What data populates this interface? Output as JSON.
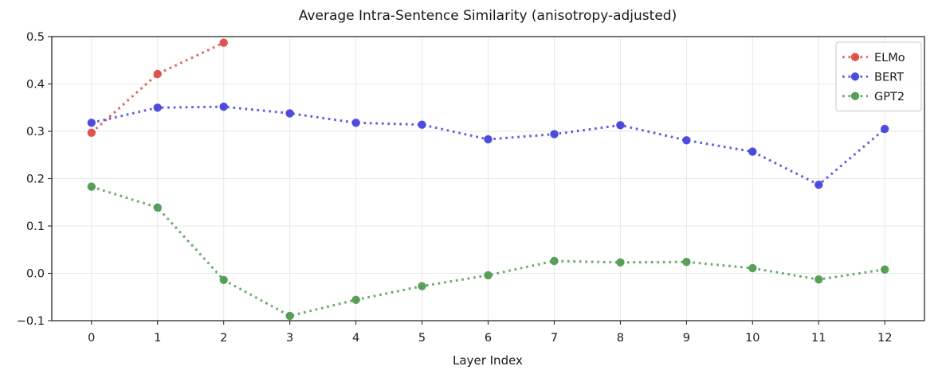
{
  "chart_data": {
    "type": "line",
    "title": "Average Intra-Sentence Similarity (anisotropy-adjusted)",
    "xlabel": "Layer Index",
    "ylabel": "",
    "line_style": "dotted",
    "marker": "circle",
    "grid": true,
    "legend_position": "upper right",
    "xlim": [
      -0.6,
      12.6
    ],
    "ylim": [
      -0.1,
      0.5
    ],
    "xticks": [
      0,
      1,
      2,
      3,
      4,
      5,
      6,
      7,
      8,
      9,
      10,
      11,
      12
    ],
    "yticks": [
      -0.1,
      0.0,
      0.1,
      0.2,
      0.3,
      0.4,
      0.5
    ],
    "series": [
      {
        "name": "ELMo",
        "color": "#dd4b42",
        "x": [
          0,
          1,
          2
        ],
        "values": [
          0.297,
          0.421,
          0.487
        ]
      },
      {
        "name": "BERT",
        "color": "#4643dd",
        "x": [
          0,
          1,
          2,
          3,
          4,
          5,
          6,
          7,
          8,
          9,
          10,
          11,
          12
        ],
        "values": [
          0.318,
          0.35,
          0.352,
          0.338,
          0.318,
          0.314,
          0.283,
          0.294,
          0.313,
          0.281,
          0.257,
          0.187,
          0.305
        ]
      },
      {
        "name": "GPT2",
        "color": "#509b50",
        "x": [
          0,
          1,
          2,
          3,
          4,
          5,
          6,
          7,
          8,
          9,
          10,
          11,
          12
        ],
        "values": [
          0.183,
          0.139,
          -0.014,
          -0.09,
          -0.056,
          -0.027,
          -0.004,
          0.026,
          0.023,
          0.024,
          0.011,
          -0.013,
          0.008
        ]
      }
    ],
    "style": {
      "grid_color": "#e7e7e7",
      "spine_color": "#2b2b2b",
      "tick_color": "#2b2b2b",
      "text_color": "#1a1a1a",
      "legend_border_color": "#c8c8c8",
      "legend_bg_color": "#ffffff",
      "background_color": "#ffffff"
    }
  }
}
